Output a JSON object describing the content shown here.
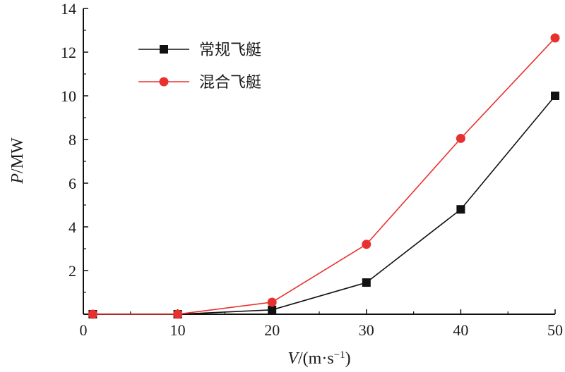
{
  "chart_data": {
    "type": "line",
    "x": [
      1,
      10,
      20,
      30,
      40,
      50
    ],
    "xlim": [
      0,
      50
    ],
    "ylim": [
      0,
      14
    ],
    "xticks": [
      0,
      10,
      20,
      30,
      40,
      50
    ],
    "yticks": [
      2,
      4,
      6,
      8,
      10,
      12,
      14
    ],
    "xlabel_var": "V",
    "xlabel_unit": "/(m·s",
    "xlabel_sup": "−1",
    "xlabel_close": ")",
    "ylabel_var": "P",
    "ylabel_unit": "/MW",
    "x_zero_label": "0",
    "grid": false,
    "legend_position": "top-left",
    "series": [
      {
        "name": "常规飞艇",
        "values": [
          0,
          0,
          0.2,
          1.45,
          4.8,
          10.0
        ],
        "color": "#111111",
        "marker": "square"
      },
      {
        "name": "混合飞艇",
        "values": [
          0,
          0,
          0.55,
          3.2,
          8.05,
          12.65
        ],
        "color": "#e8312f",
        "marker": "circle"
      }
    ]
  }
}
